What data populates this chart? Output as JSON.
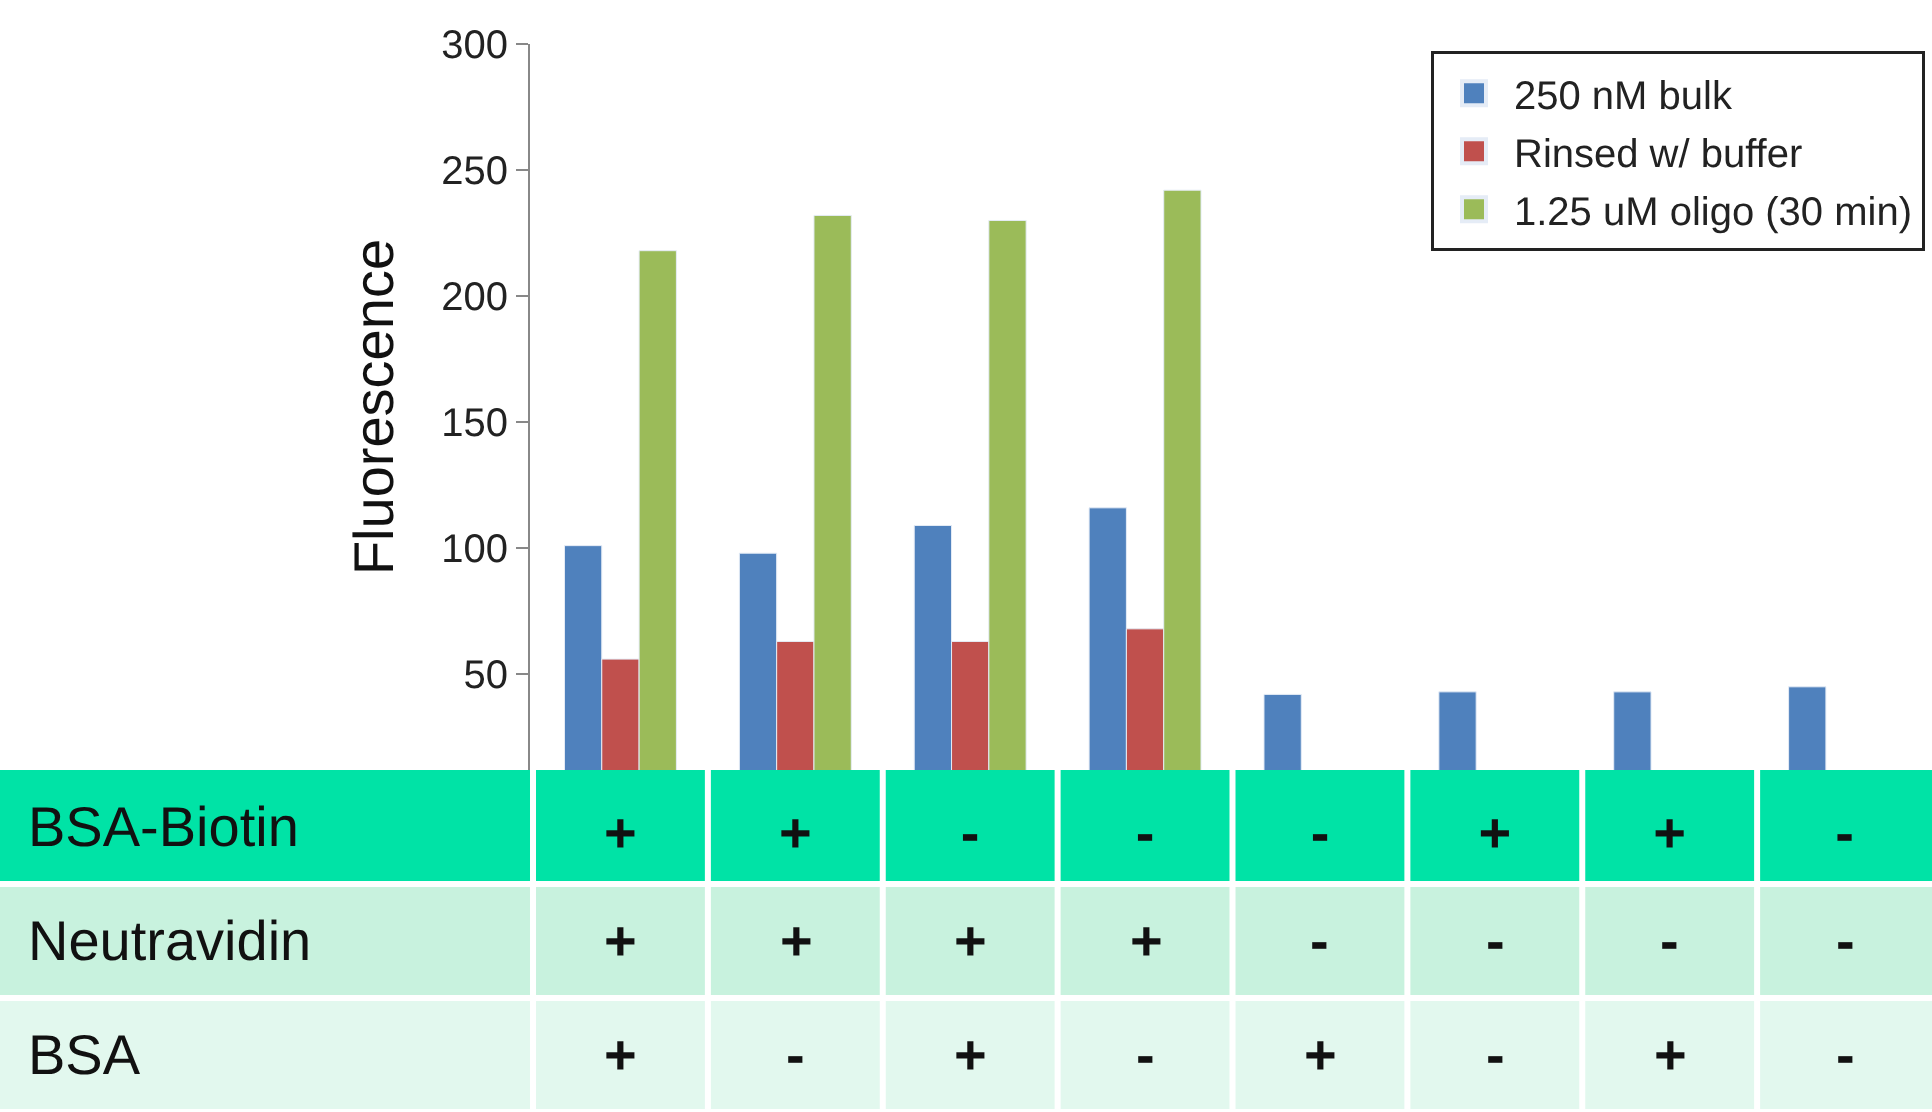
{
  "chart_data": {
    "type": "bar",
    "ylabel": "Fluorescence",
    "categories": [
      "+",
      "+",
      "-",
      "-",
      "-",
      "+",
      "+",
      "-"
    ],
    "series": [
      {
        "name": "250 nM bulk",
        "color": "#4f81bd",
        "values": [
          101,
          98,
          109,
          116,
          42,
          43,
          43,
          45
        ]
      },
      {
        "name": "Rinsed w/ buffer",
        "color": "#c0504d",
        "values": [
          56,
          63,
          63,
          68,
          null,
          null,
          null,
          null
        ]
      },
      {
        "name": "1.25 uM oligo (30 min)",
        "color": "#9bbb59",
        "values": [
          218,
          232,
          230,
          242,
          null,
          null,
          null,
          null
        ]
      }
    ],
    "ylim": [
      12,
      300
    ],
    "yticks": [
      50,
      100,
      150,
      200,
      250,
      300
    ],
    "legend": "top right",
    "annotations": [
      "BSA-Biotin",
      "Neutravidin",
      "+",
      "+",
      "+",
      "+",
      "-",
      "-",
      "-",
      "-",
      "BSA",
      "+",
      "-",
      "+",
      "-",
      "+",
      "-",
      "+",
      "-"
    ]
  }
}
